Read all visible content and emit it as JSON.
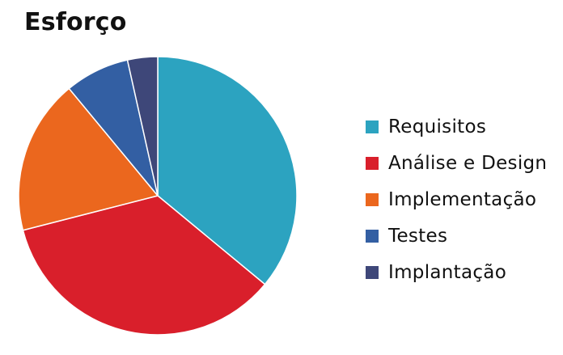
{
  "chart_data": {
    "type": "pie",
    "title": "Esforço",
    "categories": [
      "Requisitos",
      "Análise e Design",
      "Implementação",
      "Testes",
      "Implantação"
    ],
    "values": [
      36,
      35,
      18,
      7.5,
      3.5
    ],
    "colors": [
      "#2ca3c0",
      "#d91f2b",
      "#eb671e",
      "#335fa3",
      "#3e4779"
    ],
    "legend_position": "right"
  }
}
